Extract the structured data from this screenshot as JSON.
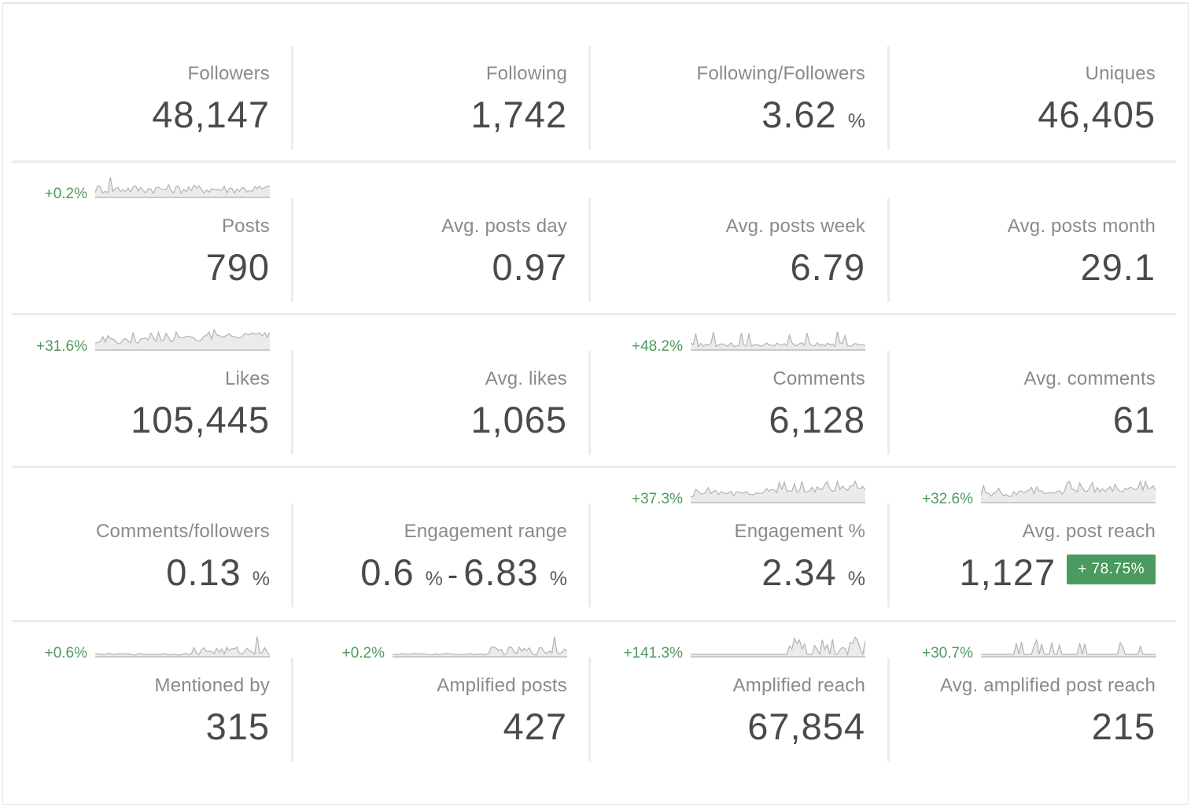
{
  "colors": {
    "positive": "#4f9a5e",
    "badge_bg": "#4b9a5f",
    "value_text": "#4a4a4a",
    "label_text": "#8a8a8a",
    "spark_line": "#b3b3b3",
    "spark_fill": "#ebebeb"
  },
  "rows": [
    {
      "stats": [
        {
          "label": "Followers",
          "value": "48,147"
        },
        {
          "label": "Following",
          "value": "1,742"
        },
        {
          "label": "Following/Followers",
          "value": "3.62",
          "unit": "%"
        },
        {
          "label": "Uniques",
          "value": "46,405"
        }
      ]
    },
    {
      "stats": [
        {
          "label": "Posts",
          "value": "790",
          "change": "+0.2%",
          "spark": "spiky"
        },
        {
          "label": "Avg. posts day",
          "value": "0.97"
        },
        {
          "label": "Avg. posts week",
          "value": "6.79"
        },
        {
          "label": "Avg. posts month",
          "value": "29.1"
        }
      ]
    },
    {
      "stats": [
        {
          "label": "Likes",
          "value": "105,445",
          "change": "+31.6%",
          "spark": "rising"
        },
        {
          "label": "Avg. likes",
          "value": "1,065"
        },
        {
          "label": "Comments",
          "value": "6,128",
          "change": "+48.2%",
          "spark": "sparse-peaks"
        },
        {
          "label": "Avg. comments",
          "value": "61"
        }
      ]
    },
    {
      "stats": [
        {
          "label": "Comments/followers",
          "value": "0.13",
          "unit": "%"
        },
        {
          "label": "Engagement range",
          "value_low": "0.6",
          "value_high": "6.83",
          "unit": "%",
          "separator": "-"
        },
        {
          "label": "Engagement %",
          "value": "2.34",
          "unit": "%",
          "change": "+37.3%",
          "spark": "rising"
        },
        {
          "label": "Avg. post reach",
          "value": "1,127",
          "badge": "+ 78.75%",
          "change": "+32.6%",
          "spark": "rising"
        }
      ]
    },
    {
      "stats": [
        {
          "label": "Mentioned by",
          "value": "315",
          "change": "+0.6%",
          "spark": "late-burst"
        },
        {
          "label": "Amplified posts",
          "value": "427",
          "change": "+0.2%",
          "spark": "late-burst"
        },
        {
          "label": "Amplified reach",
          "value": "67,854",
          "change": "+141.3%",
          "spark": "bars"
        },
        {
          "label": "Avg. amplified post reach",
          "value": "215",
          "change": "+30.7%",
          "spark": "bars-wide"
        }
      ]
    }
  ]
}
